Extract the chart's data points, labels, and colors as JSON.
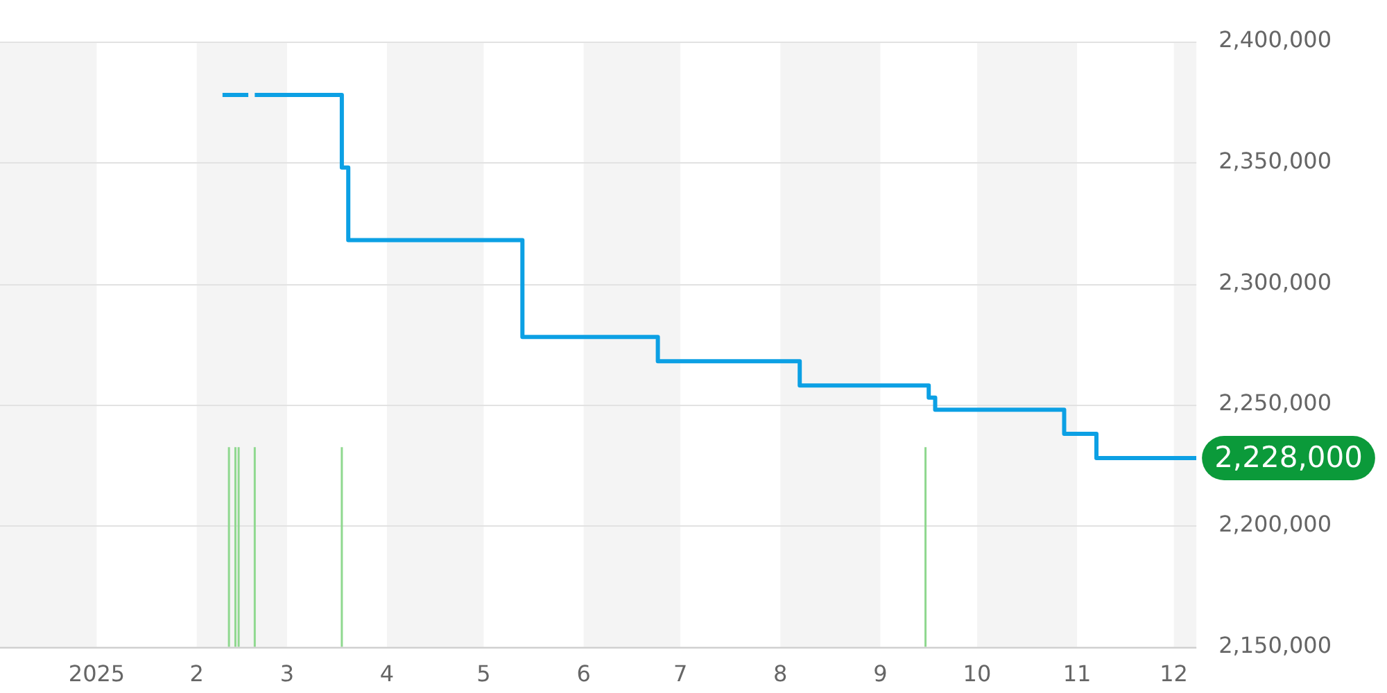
{
  "chart_data": {
    "type": "step",
    "xlim": [
      "2024-12-02",
      "2025-12-08"
    ],
    "xticks": [
      {
        "value": "2025-01-01",
        "label": "2025"
      },
      {
        "value": "2025-02-01",
        "label": "2"
      },
      {
        "value": "2025-03-01",
        "label": "3"
      },
      {
        "value": "2025-04-01",
        "label": "4"
      },
      {
        "value": "2025-05-01",
        "label": "5"
      },
      {
        "value": "2025-06-01",
        "label": "6"
      },
      {
        "value": "2025-07-01",
        "label": "7"
      },
      {
        "value": "2025-08-01",
        "label": "8"
      },
      {
        "value": "2025-09-01",
        "label": "9"
      },
      {
        "value": "2025-10-01",
        "label": "10"
      },
      {
        "value": "2025-11-01",
        "label": "11"
      },
      {
        "value": "2025-12-01",
        "label": "12"
      }
    ],
    "ylim": [
      2150000,
      2400000
    ],
    "yticks": [
      {
        "value": 2150000,
        "label": "2,150,000"
      },
      {
        "value": 2200000,
        "label": "2,200,000"
      },
      {
        "value": 2250000,
        "label": "2,250,000"
      },
      {
        "value": 2300000,
        "label": "2,300,000"
      },
      {
        "value": 2350000,
        "label": "2,350,000"
      },
      {
        "value": 2400000,
        "label": "2,400,000"
      }
    ],
    "grid": "y",
    "legend": false,
    "marker": "none",
    "line_style": "solid",
    "series": [
      {
        "color": "#0ca0e4",
        "x": [
          "2025-02-09",
          "2025-02-17",
          "2025-02-18",
          "2025-02-19",
          "2025-03-18",
          "2025-03-20",
          "2025-05-13",
          "2025-06-24",
          "2025-08-07",
          "2025-09-16",
          "2025-09-18",
          "2025-10-28",
          "2025-11-07",
          "2025-12-08"
        ],
        "values": [
          2378000,
          2378000,
          null,
          2378000,
          2348000,
          2318000,
          2278000,
          2268000,
          2258000,
          2253000,
          2248000,
          2238000,
          2228000,
          2228000
        ]
      }
    ],
    "bands": [
      {
        "axis": "x",
        "from": "2024-12-02",
        "to": "2025-01-01",
        "color": "#f4f4f4"
      },
      {
        "axis": "x",
        "from": "2025-02-01",
        "to": "2025-03-01",
        "color": "#f4f4f4"
      },
      {
        "axis": "x",
        "from": "2025-04-01",
        "to": "2025-05-01",
        "color": "#f4f4f4"
      },
      {
        "axis": "x",
        "from": "2025-06-01",
        "to": "2025-07-01",
        "color": "#f4f4f4"
      },
      {
        "axis": "x",
        "from": "2025-08-01",
        "to": "2025-09-01",
        "color": "#f4f4f4"
      },
      {
        "axis": "x",
        "from": "2025-10-01",
        "to": "2025-11-01",
        "color": "#f4f4f4"
      },
      {
        "axis": "x",
        "from": "2025-12-01",
        "to": "2025-12-08",
        "color": "#f4f4f4"
      }
    ],
    "ref_lines": [
      {
        "axis": "x",
        "value": "2025-02-11",
        "color": "#8fd88f"
      },
      {
        "axis": "x",
        "value": "2025-02-13",
        "color": "#8fd88f"
      },
      {
        "axis": "x",
        "value": "2025-02-14",
        "color": "#8fd88f"
      },
      {
        "axis": "x",
        "value": "2025-02-19",
        "color": "#8fd88f"
      },
      {
        "axis": "x",
        "value": "2025-03-18",
        "color": "#8fd88f"
      },
      {
        "axis": "x",
        "value": "2025-09-15",
        "color": "#8fd88f"
      }
    ],
    "annotations": [
      {
        "text": "2,228,000",
        "x": "2025-12-08",
        "y": 2228000
      }
    ]
  }
}
